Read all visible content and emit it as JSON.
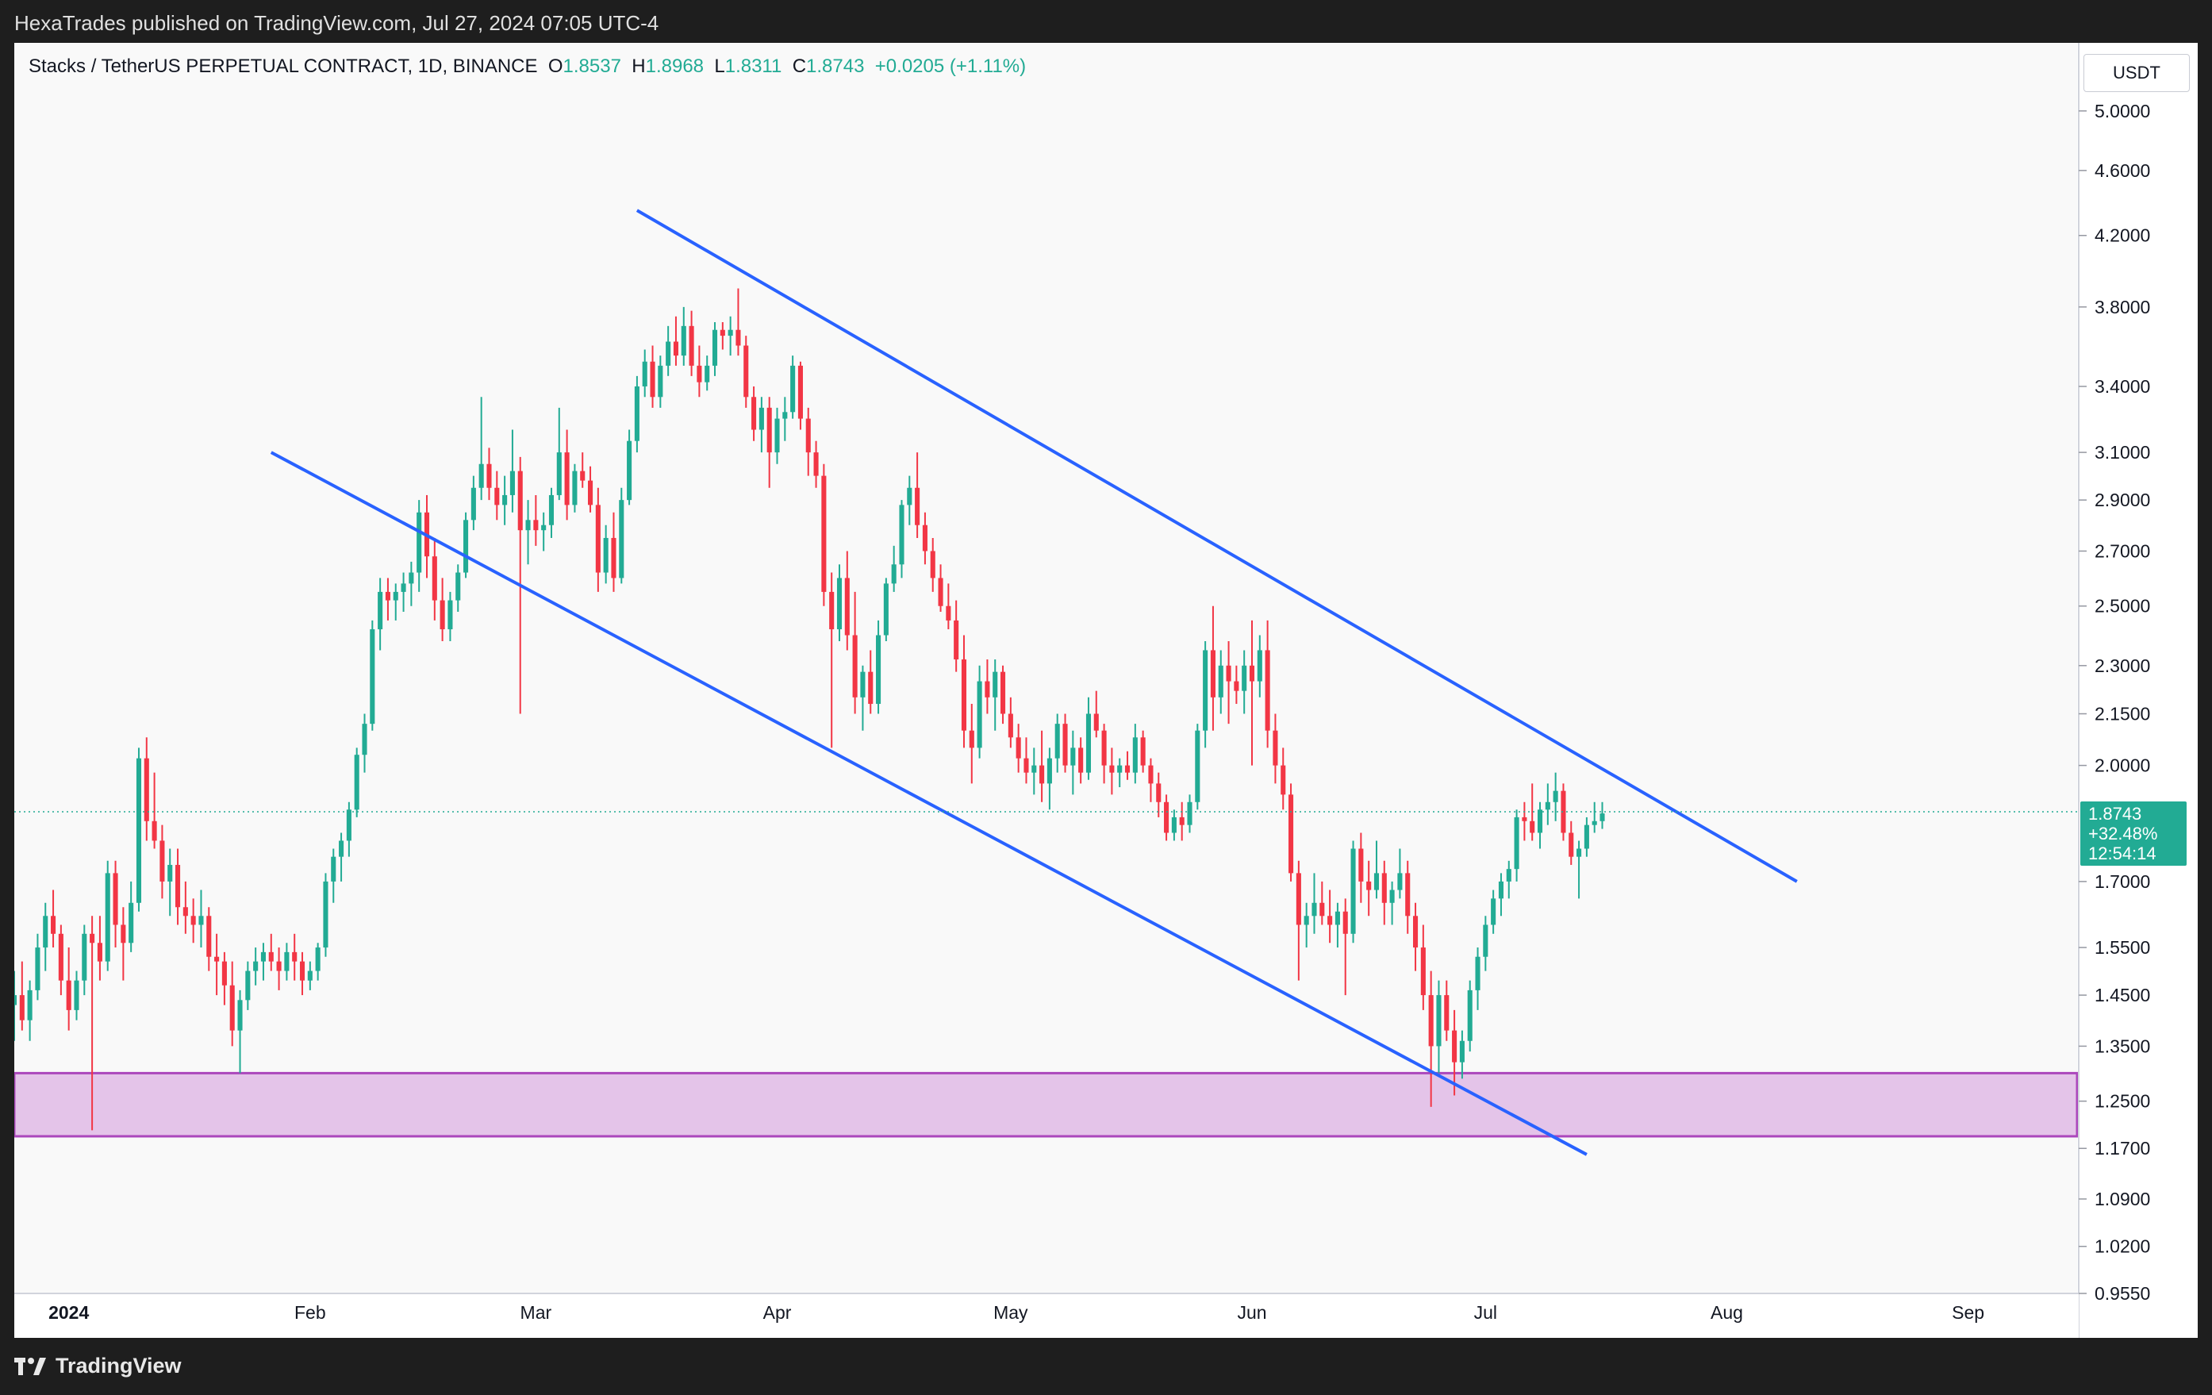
{
  "header": {
    "published": "HexaTrades published on TradingView.com, Jul 27, 2024 07:05 UTC-4"
  },
  "legend": {
    "symbol": "Stacks / TetherUS PERPETUAL CONTRACT, 1D, BINANCE",
    "o_label": "O",
    "o_value": "1.8537",
    "h_label": "H",
    "h_value": "1.8968",
    "l_label": "L",
    "l_value": "1.8311",
    "c_label": "C",
    "c_value": "1.8743",
    "change": "+0.0205 (+1.11%)"
  },
  "price_axis": {
    "currency": "USDT",
    "last_price": "1.8743",
    "last_change": "+32.48%",
    "countdown": "12:54:14"
  },
  "brand": {
    "name": "TradingView"
  },
  "colors": {
    "up": "#22ab94",
    "down": "#f23645",
    "channel": "#2962ff",
    "zone_fill": "#e1bee7",
    "zone_border": "#ab47bc"
  },
  "chart_data": {
    "type": "candlestick",
    "y_scale": "log",
    "ylim": [
      0.955,
      5.5
    ],
    "y_ticks": [
      5.0,
      4.6,
      4.2,
      3.8,
      3.4,
      3.1,
      2.9,
      2.7,
      2.5,
      2.3,
      2.15,
      2.0,
      1.7,
      1.55,
      1.45,
      1.35,
      1.25,
      1.17,
      1.09,
      1.02,
      0.955
    ],
    "y_tick_labels": [
      "5.0000",
      "4.6000",
      "4.2000",
      "3.8000",
      "3.4000",
      "3.1000",
      "2.9000",
      "2.7000",
      "2.5000",
      "2.3000",
      "2.1500",
      "2.0000",
      "1.7000",
      "1.5500",
      "1.4500",
      "1.3500",
      "1.2500",
      "1.1700",
      "1.0900",
      "1.0200",
      "0.9550"
    ],
    "x_labels": [
      {
        "date": "2024-01-01",
        "label": "2024"
      },
      {
        "date": "2024-02-01",
        "label": "Feb"
      },
      {
        "date": "2024-03-01",
        "label": "Mar"
      },
      {
        "date": "2024-04-01",
        "label": "Apr"
      },
      {
        "date": "2024-05-01",
        "label": "May"
      },
      {
        "date": "2024-06-01",
        "label": "Jun"
      },
      {
        "date": "2024-07-01",
        "label": "Jul"
      },
      {
        "date": "2024-08-01",
        "label": "Aug"
      },
      {
        "date": "2024-09-01",
        "label": "Sep"
      }
    ],
    "x_range": [
      "2023-12-25",
      "2024-09-15"
    ],
    "last_close": 1.8743,
    "demand_zone": {
      "low": 1.19,
      "high": 1.3
    },
    "channel_lines": [
      {
        "name": "upper",
        "start": {
          "date": "2024-03-14",
          "price": 4.35
        },
        "end": {
          "date": "2024-08-10",
          "price": 1.7
        }
      },
      {
        "name": "lower",
        "start": {
          "date": "2024-01-27",
          "price": 3.1
        },
        "end": {
          "date": "2024-07-14",
          "price": 1.16
        }
      }
    ],
    "ohlc": [
      [
        1.43,
        1.5,
        1.36,
        1.45
      ],
      [
        1.45,
        1.52,
        1.38,
        1.4
      ],
      [
        1.4,
        1.48,
        1.36,
        1.46
      ],
      [
        1.46,
        1.58,
        1.44,
        1.55
      ],
      [
        1.55,
        1.65,
        1.5,
        1.62
      ],
      [
        1.62,
        1.68,
        1.55,
        1.58
      ],
      [
        1.58,
        1.6,
        1.45,
        1.48
      ],
      [
        1.48,
        1.55,
        1.38,
        1.42
      ],
      [
        1.42,
        1.5,
        1.4,
        1.48
      ],
      [
        1.48,
        1.6,
        1.45,
        1.58
      ],
      [
        1.58,
        1.62,
        1.2,
        1.56
      ],
      [
        1.56,
        1.62,
        1.48,
        1.52
      ],
      [
        1.52,
        1.75,
        1.5,
        1.72
      ],
      [
        1.72,
        1.75,
        1.55,
        1.6
      ],
      [
        1.6,
        1.64,
        1.48,
        1.56
      ],
      [
        1.56,
        1.7,
        1.54,
        1.65
      ],
      [
        1.65,
        2.05,
        1.63,
        2.02
      ],
      [
        2.02,
        2.08,
        1.8,
        1.85
      ],
      [
        1.85,
        1.98,
        1.78,
        1.8
      ],
      [
        1.8,
        1.84,
        1.66,
        1.7
      ],
      [
        1.7,
        1.78,
        1.62,
        1.74
      ],
      [
        1.74,
        1.78,
        1.6,
        1.64
      ],
      [
        1.64,
        1.7,
        1.58,
        1.62
      ],
      [
        1.62,
        1.66,
        1.56,
        1.6
      ],
      [
        1.6,
        1.68,
        1.55,
        1.62
      ],
      [
        1.62,
        1.64,
        1.5,
        1.53
      ],
      [
        1.53,
        1.58,
        1.45,
        1.52
      ],
      [
        1.52,
        1.54,
        1.43,
        1.47
      ],
      [
        1.47,
        1.52,
        1.35,
        1.38
      ],
      [
        1.38,
        1.46,
        1.3,
        1.44
      ],
      [
        1.44,
        1.52,
        1.42,
        1.5
      ],
      [
        1.5,
        1.55,
        1.47,
        1.52
      ],
      [
        1.52,
        1.56,
        1.48,
        1.54
      ],
      [
        1.54,
        1.58,
        1.5,
        1.52
      ],
      [
        1.52,
        1.55,
        1.46,
        1.5
      ],
      [
        1.5,
        1.56,
        1.48,
        1.54
      ],
      [
        1.54,
        1.58,
        1.48,
        1.52
      ],
      [
        1.52,
        1.54,
        1.45,
        1.48
      ],
      [
        1.48,
        1.52,
        1.46,
        1.5
      ],
      [
        1.5,
        1.56,
        1.48,
        1.55
      ],
      [
        1.55,
        1.72,
        1.53,
        1.7
      ],
      [
        1.7,
        1.78,
        1.65,
        1.76
      ],
      [
        1.76,
        1.82,
        1.7,
        1.8
      ],
      [
        1.8,
        1.9,
        1.76,
        1.88
      ],
      [
        1.88,
        2.05,
        1.86,
        2.03
      ],
      [
        2.03,
        2.15,
        1.98,
        2.12
      ],
      [
        2.12,
        2.45,
        2.1,
        2.42
      ],
      [
        2.42,
        2.6,
        2.35,
        2.55
      ],
      [
        2.55,
        2.6,
        2.45,
        2.52
      ],
      [
        2.52,
        2.58,
        2.45,
        2.55
      ],
      [
        2.55,
        2.62,
        2.48,
        2.58
      ],
      [
        2.58,
        2.66,
        2.5,
        2.62
      ],
      [
        2.62,
        2.9,
        2.55,
        2.85
      ],
      [
        2.85,
        2.92,
        2.6,
        2.68
      ],
      [
        2.68,
        2.75,
        2.45,
        2.52
      ],
      [
        2.52,
        2.6,
        2.38,
        2.42
      ],
      [
        2.42,
        2.55,
        2.38,
        2.52
      ],
      [
        2.52,
        2.65,
        2.48,
        2.62
      ],
      [
        2.62,
        2.85,
        2.6,
        2.82
      ],
      [
        2.82,
        3.0,
        2.78,
        2.95
      ],
      [
        2.95,
        3.35,
        2.9,
        3.05
      ],
      [
        3.05,
        3.12,
        2.9,
        2.95
      ],
      [
        2.95,
        3.02,
        2.82,
        2.88
      ],
      [
        2.88,
        3.0,
        2.8,
        2.92
      ],
      [
        2.92,
        3.2,
        2.85,
        3.02
      ],
      [
        3.02,
        3.08,
        2.15,
        2.78
      ],
      [
        2.78,
        2.9,
        2.65,
        2.82
      ],
      [
        2.82,
        2.92,
        2.72,
        2.78
      ],
      [
        2.78,
        2.85,
        2.7,
        2.8
      ],
      [
        2.8,
        2.95,
        2.75,
        2.92
      ],
      [
        2.92,
        3.3,
        2.9,
        3.1
      ],
      [
        3.1,
        3.2,
        2.82,
        2.88
      ],
      [
        2.88,
        3.05,
        2.85,
        3.02
      ],
      [
        3.02,
        3.1,
        2.95,
        2.98
      ],
      [
        2.98,
        3.04,
        2.85,
        2.88
      ],
      [
        2.88,
        2.95,
        2.55,
        2.62
      ],
      [
        2.62,
        2.8,
        2.58,
        2.75
      ],
      [
        2.75,
        2.85,
        2.55,
        2.6
      ],
      [
        2.6,
        2.95,
        2.58,
        2.9
      ],
      [
        2.9,
        3.2,
        2.88,
        3.15
      ],
      [
        3.15,
        3.45,
        3.1,
        3.4
      ],
      [
        3.4,
        3.58,
        3.35,
        3.52
      ],
      [
        3.52,
        3.6,
        3.3,
        3.35
      ],
      [
        3.35,
        3.55,
        3.3,
        3.5
      ],
      [
        3.5,
        3.7,
        3.45,
        3.62
      ],
      [
        3.62,
        3.75,
        3.5,
        3.55
      ],
      [
        3.55,
        3.8,
        3.5,
        3.7
      ],
      [
        3.7,
        3.78,
        3.45,
        3.5
      ],
      [
        3.5,
        3.6,
        3.35,
        3.42
      ],
      [
        3.42,
        3.55,
        3.38,
        3.5
      ],
      [
        3.5,
        3.72,
        3.45,
        3.68
      ],
      [
        3.68,
        3.72,
        3.58,
        3.65
      ],
      [
        3.65,
        3.75,
        3.55,
        3.68
      ],
      [
        3.68,
        3.9,
        3.55,
        3.6
      ],
      [
        3.6,
        3.65,
        3.3,
        3.35
      ],
      [
        3.35,
        3.4,
        3.15,
        3.2
      ],
      [
        3.2,
        3.35,
        3.1,
        3.3
      ],
      [
        3.3,
        3.35,
        2.95,
        3.1
      ],
      [
        3.1,
        3.3,
        3.05,
        3.25
      ],
      [
        3.25,
        3.35,
        3.15,
        3.28
      ],
      [
        3.28,
        3.55,
        3.25,
        3.5
      ],
      [
        3.5,
        3.52,
        3.2,
        3.25
      ],
      [
        3.25,
        3.3,
        3.0,
        3.1
      ],
      [
        3.1,
        3.15,
        2.95,
        3.0
      ],
      [
        3.0,
        3.05,
        2.5,
        2.55
      ],
      [
        2.55,
        2.62,
        2.05,
        2.42
      ],
      [
        2.42,
        2.65,
        2.38,
        2.6
      ],
      [
        2.6,
        2.7,
        2.35,
        2.4
      ],
      [
        2.4,
        2.55,
        2.15,
        2.2
      ],
      [
        2.2,
        2.3,
        2.1,
        2.28
      ],
      [
        2.28,
        2.35,
        2.15,
        2.18
      ],
      [
        2.18,
        2.45,
        2.15,
        2.4
      ],
      [
        2.4,
        2.6,
        2.38,
        2.58
      ],
      [
        2.58,
        2.72,
        2.55,
        2.65
      ],
      [
        2.65,
        2.9,
        2.6,
        2.88
      ],
      [
        2.88,
        3.0,
        2.8,
        2.95
      ],
      [
        2.95,
        3.1,
        2.75,
        2.8
      ],
      [
        2.8,
        2.85,
        2.65,
        2.7
      ],
      [
        2.7,
        2.75,
        2.55,
        2.6
      ],
      [
        2.6,
        2.65,
        2.48,
        2.5
      ],
      [
        2.5,
        2.58,
        2.42,
        2.45
      ],
      [
        2.45,
        2.52,
        2.28,
        2.32
      ],
      [
        2.32,
        2.4,
        2.05,
        2.1
      ],
      [
        2.1,
        2.18,
        1.95,
        2.05
      ],
      [
        2.05,
        2.3,
        2.02,
        2.25
      ],
      [
        2.25,
        2.32,
        2.15,
        2.2
      ],
      [
        2.2,
        2.32,
        2.1,
        2.28
      ],
      [
        2.28,
        2.3,
        2.12,
        2.15
      ],
      [
        2.15,
        2.2,
        2.05,
        2.08
      ],
      [
        2.08,
        2.12,
        1.98,
        2.02
      ],
      [
        2.02,
        2.08,
        1.95,
        1.98
      ],
      [
        1.98,
        2.05,
        1.92,
        2.0
      ],
      [
        2.0,
        2.1,
        1.9,
        1.95
      ],
      [
        1.95,
        2.05,
        1.88,
        2.02
      ],
      [
        2.02,
        2.15,
        1.98,
        2.12
      ],
      [
        2.12,
        2.15,
        1.98,
        2.0
      ],
      [
        2.0,
        2.1,
        1.92,
        2.05
      ],
      [
        2.05,
        2.08,
        1.95,
        1.98
      ],
      [
        1.98,
        2.2,
        1.96,
        2.15
      ],
      [
        2.15,
        2.22,
        2.08,
        2.1
      ],
      [
        2.1,
        2.12,
        1.95,
        2.0
      ],
      [
        2.0,
        2.05,
        1.92,
        1.98
      ],
      [
        1.98,
        2.02,
        1.94,
        2.0
      ],
      [
        2.0,
        2.04,
        1.96,
        1.98
      ],
      [
        1.98,
        2.12,
        1.95,
        2.08
      ],
      [
        2.08,
        2.1,
        1.98,
        2.0
      ],
      [
        2.0,
        2.02,
        1.9,
        1.95
      ],
      [
        1.95,
        1.98,
        1.86,
        1.9
      ],
      [
        1.9,
        1.92,
        1.8,
        1.82
      ],
      [
        1.82,
        1.88,
        1.8,
        1.86
      ],
      [
        1.86,
        1.9,
        1.8,
        1.84
      ],
      [
        1.84,
        1.92,
        1.82,
        1.9
      ],
      [
        1.9,
        2.12,
        1.88,
        2.1
      ],
      [
        2.1,
        2.38,
        2.05,
        2.35
      ],
      [
        2.35,
        2.5,
        2.1,
        2.2
      ],
      [
        2.2,
        2.35,
        2.15,
        2.3
      ],
      [
        2.3,
        2.38,
        2.12,
        2.25
      ],
      [
        2.25,
        2.3,
        2.18,
        2.22
      ],
      [
        2.22,
        2.35,
        2.15,
        2.3
      ],
      [
        2.3,
        2.45,
        2.0,
        2.25
      ],
      [
        2.25,
        2.4,
        2.2,
        2.35
      ],
      [
        2.35,
        2.45,
        2.05,
        2.1
      ],
      [
        2.1,
        2.15,
        1.95,
        2.0
      ],
      [
        2.0,
        2.05,
        1.88,
        1.92
      ],
      [
        1.92,
        1.95,
        1.7,
        1.72
      ],
      [
        1.72,
        1.75,
        1.48,
        1.6
      ],
      [
        1.6,
        1.65,
        1.55,
        1.62
      ],
      [
        1.62,
        1.72,
        1.58,
        1.65
      ],
      [
        1.65,
        1.7,
        1.6,
        1.62
      ],
      [
        1.62,
        1.68,
        1.56,
        1.6
      ],
      [
        1.6,
        1.65,
        1.55,
        1.63
      ],
      [
        1.63,
        1.66,
        1.45,
        1.58
      ],
      [
        1.58,
        1.8,
        1.56,
        1.78
      ],
      [
        1.78,
        1.82,
        1.65,
        1.7
      ],
      [
        1.7,
        1.75,
        1.62,
        1.68
      ],
      [
        1.68,
        1.8,
        1.66,
        1.72
      ],
      [
        1.72,
        1.75,
        1.6,
        1.65
      ],
      [
        1.65,
        1.7,
        1.6,
        1.68
      ],
      [
        1.68,
        1.78,
        1.66,
        1.72
      ],
      [
        1.72,
        1.75,
        1.58,
        1.62
      ],
      [
        1.62,
        1.65,
        1.5,
        1.55
      ],
      [
        1.55,
        1.6,
        1.42,
        1.45
      ],
      [
        1.45,
        1.5,
        1.24,
        1.35
      ],
      [
        1.35,
        1.48,
        1.3,
        1.45
      ],
      [
        1.45,
        1.48,
        1.36,
        1.38
      ],
      [
        1.38,
        1.42,
        1.26,
        1.32
      ],
      [
        1.32,
        1.38,
        1.29,
        1.36
      ],
      [
        1.36,
        1.48,
        1.34,
        1.46
      ],
      [
        1.46,
        1.55,
        1.42,
        1.53
      ],
      [
        1.53,
        1.62,
        1.5,
        1.6
      ],
      [
        1.6,
        1.68,
        1.58,
        1.66
      ],
      [
        1.66,
        1.72,
        1.62,
        1.7
      ],
      [
        1.7,
        1.75,
        1.66,
        1.73
      ],
      [
        1.73,
        1.88,
        1.7,
        1.86
      ],
      [
        1.86,
        1.9,
        1.8,
        1.85
      ],
      [
        1.85,
        1.95,
        1.8,
        1.82
      ],
      [
        1.82,
        1.9,
        1.78,
        1.88
      ],
      [
        1.88,
        1.95,
        1.84,
        1.9
      ],
      [
        1.9,
        1.98,
        1.85,
        1.93
      ],
      [
        1.93,
        1.95,
        1.8,
        1.82
      ],
      [
        1.82,
        1.85,
        1.74,
        1.76
      ],
      [
        1.76,
        1.8,
        1.66,
        1.78
      ],
      [
        1.78,
        1.86,
        1.76,
        1.84
      ],
      [
        1.84,
        1.9,
        1.82,
        1.85
      ],
      [
        1.85,
        1.9,
        1.83,
        1.87
      ]
    ]
  }
}
